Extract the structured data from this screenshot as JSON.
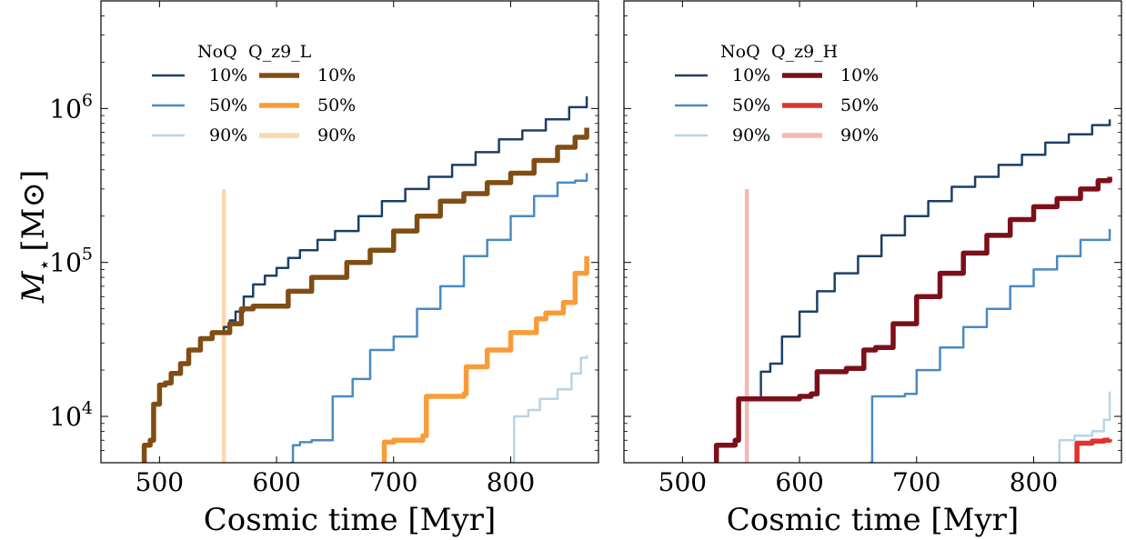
{
  "figure": {
    "ylabel_symbol": "M",
    "ylabel_sub": "⋆",
    "ylabel_unit": "[M⊙]",
    "xlabel": "Cosmic time [Myr]"
  },
  "chart_data": [
    {
      "type": "line",
      "panel": "left",
      "xlabel": "Cosmic time [Myr]",
      "ylabel": "M⋆ [M⊙]",
      "xlim": [
        450,
        875
      ],
      "ylim": [
        5000,
        5000000
      ],
      "yscale": "log",
      "xticks": [
        500,
        600,
        700,
        800
      ],
      "yticks": [
        {
          "value": 10000,
          "base": "10",
          "exp": "4"
        },
        {
          "value": 100000,
          "base": "10",
          "exp": "5"
        },
        {
          "value": 1000000,
          "base": "10",
          "exp": "6"
        }
      ],
      "legend": {
        "placement": "upper-left",
        "col_headers": [
          "NoQ",
          "Q_z9_L"
        ],
        "rows": [
          "10%",
          "50%",
          "90%"
        ]
      },
      "vline": {
        "x": 555,
        "color": "#fbd7b0"
      },
      "series": [
        {
          "name": "NoQ 10%",
          "color": "#1c3f66",
          "width": 2.5,
          "x": [
            548,
            555,
            560,
            565,
            572,
            580,
            590,
            600,
            610,
            620,
            635,
            650,
            670,
            690,
            710,
            730,
            750,
            770,
            790,
            810,
            830,
            850,
            865
          ],
          "y": [
            35000,
            38000,
            42000,
            48000,
            60000,
            72000,
            82000,
            92000,
            107000,
            120000,
            140000,
            160000,
            200000,
            250000,
            300000,
            360000,
            430000,
            520000,
            630000,
            720000,
            850000,
            1020000,
            1200000
          ]
        },
        {
          "name": "NoQ 50%",
          "color": "#4a8ac4",
          "width": 2.5,
          "x": [
            612,
            614,
            620,
            630,
            648,
            665,
            680,
            700,
            720,
            740,
            760,
            780,
            800,
            820,
            840,
            855,
            865
          ],
          "y": [
            5000,
            6500,
            6800,
            7000,
            13500,
            17500,
            27000,
            33000,
            50000,
            70000,
            110000,
            140000,
            200000,
            270000,
            330000,
            340000,
            380000
          ]
        },
        {
          "name": "NoQ 90%",
          "color": "#b8d4e8",
          "width": 2.5,
          "x": [
            800,
            803,
            815,
            825,
            840,
            852,
            860,
            865
          ],
          "y": [
            5000,
            10000,
            11000,
            13000,
            15000,
            19000,
            24000,
            25000
          ]
        },
        {
          "name": "Q_z9_L 10%",
          "color": "#804d14",
          "width": 5.5,
          "x": [
            485,
            487,
            492,
            495,
            500,
            505,
            510,
            518,
            525,
            535,
            545,
            560,
            570,
            580,
            610,
            630,
            660,
            680,
            700,
            720,
            740,
            760,
            780,
            800,
            820,
            840,
            855,
            865
          ],
          "y": [
            5000,
            6500,
            7000,
            12000,
            16000,
            16500,
            19000,
            22000,
            27000,
            32000,
            35000,
            40000,
            50000,
            52000,
            65000,
            80000,
            100000,
            120000,
            160000,
            200000,
            250000,
            280000,
            330000,
            380000,
            460000,
            560000,
            650000,
            750000
          ]
        },
        {
          "name": "Q_z9_L 50%",
          "color": "#f89c3a",
          "width": 5.5,
          "x": [
            690,
            692,
            700,
            725,
            728,
            760,
            762,
            780,
            800,
            822,
            830,
            845,
            855,
            865
          ],
          "y": [
            5000,
            6800,
            7000,
            7500,
            13500,
            14000,
            21000,
            27000,
            35000,
            43000,
            47000,
            55000,
            85000,
            110000
          ]
        },
        {
          "name": "Q_z9_L 90%",
          "color": "#fbd7b0",
          "width": 5.5,
          "x": [],
          "y": []
        }
      ]
    },
    {
      "type": "line",
      "panel": "right",
      "xlabel": "Cosmic time [Myr]",
      "ylabel": "",
      "xlim": [
        450,
        875
      ],
      "ylim": [
        5000,
        5000000
      ],
      "yscale": "log",
      "xticks": [
        500,
        600,
        700,
        800
      ],
      "yticks": [],
      "legend": {
        "placement": "upper-left",
        "col_headers": [
          "NoQ",
          "Q_z9_H"
        ],
        "rows": [
          "10%",
          "50%",
          "90%"
        ]
      },
      "vline": {
        "x": 555,
        "color": "#f4b8b3"
      },
      "series": [
        {
          "name": "NoQ 10%",
          "color": "#1c3f66",
          "width": 2.5,
          "x": [
            565,
            567,
            575,
            585,
            600,
            615,
            630,
            650,
            670,
            690,
            710,
            730,
            750,
            770,
            790,
            810,
            830,
            850,
            865
          ],
          "y": [
            13000,
            19500,
            22000,
            33000,
            48000,
            65000,
            85000,
            110000,
            150000,
            200000,
            250000,
            310000,
            360000,
            430000,
            500000,
            600000,
            680000,
            780000,
            850000
          ]
        },
        {
          "name": "NoQ 50%",
          "color": "#4a8ac4",
          "width": 2.5,
          "x": [
            660,
            662,
            690,
            700,
            720,
            740,
            760,
            780,
            800,
            820,
            840,
            865
          ],
          "y": [
            5000,
            13500,
            14000,
            20000,
            28000,
            38000,
            50000,
            70000,
            90000,
            110000,
            140000,
            165000
          ]
        },
        {
          "name": "NoQ 90%",
          "color": "#b8d4e8",
          "width": 2.5,
          "x": [
            820,
            822,
            835,
            850,
            860,
            865
          ],
          "y": [
            5000,
            7000,
            7500,
            8000,
            9500,
            14500
          ]
        },
        {
          "name": "Q_z9_H 10%",
          "color": "#7c0f18",
          "width": 5.5,
          "x": [
            527,
            529,
            540,
            545,
            548,
            600,
            610,
            615,
            640,
            655,
            665,
            680,
            700,
            720,
            740,
            760,
            780,
            800,
            820,
            840,
            855,
            865
          ],
          "y": [
            5000,
            6500,
            6500,
            7000,
            13000,
            13500,
            14000,
            19500,
            20500,
            27000,
            28000,
            40000,
            60000,
            85000,
            115000,
            150000,
            190000,
            230000,
            260000,
            300000,
            340000,
            360000
          ]
        },
        {
          "name": "Q_z9_H 50%",
          "color": "#e0332e",
          "width": 5.5,
          "x": [
            835,
            837,
            850,
            860,
            865
          ],
          "y": [
            5000,
            6700,
            6900,
            7000,
            7100
          ]
        },
        {
          "name": "Q_z9_H 90%",
          "color": "#f4b8b3",
          "width": 5.5,
          "x": [],
          "y": []
        }
      ]
    }
  ]
}
